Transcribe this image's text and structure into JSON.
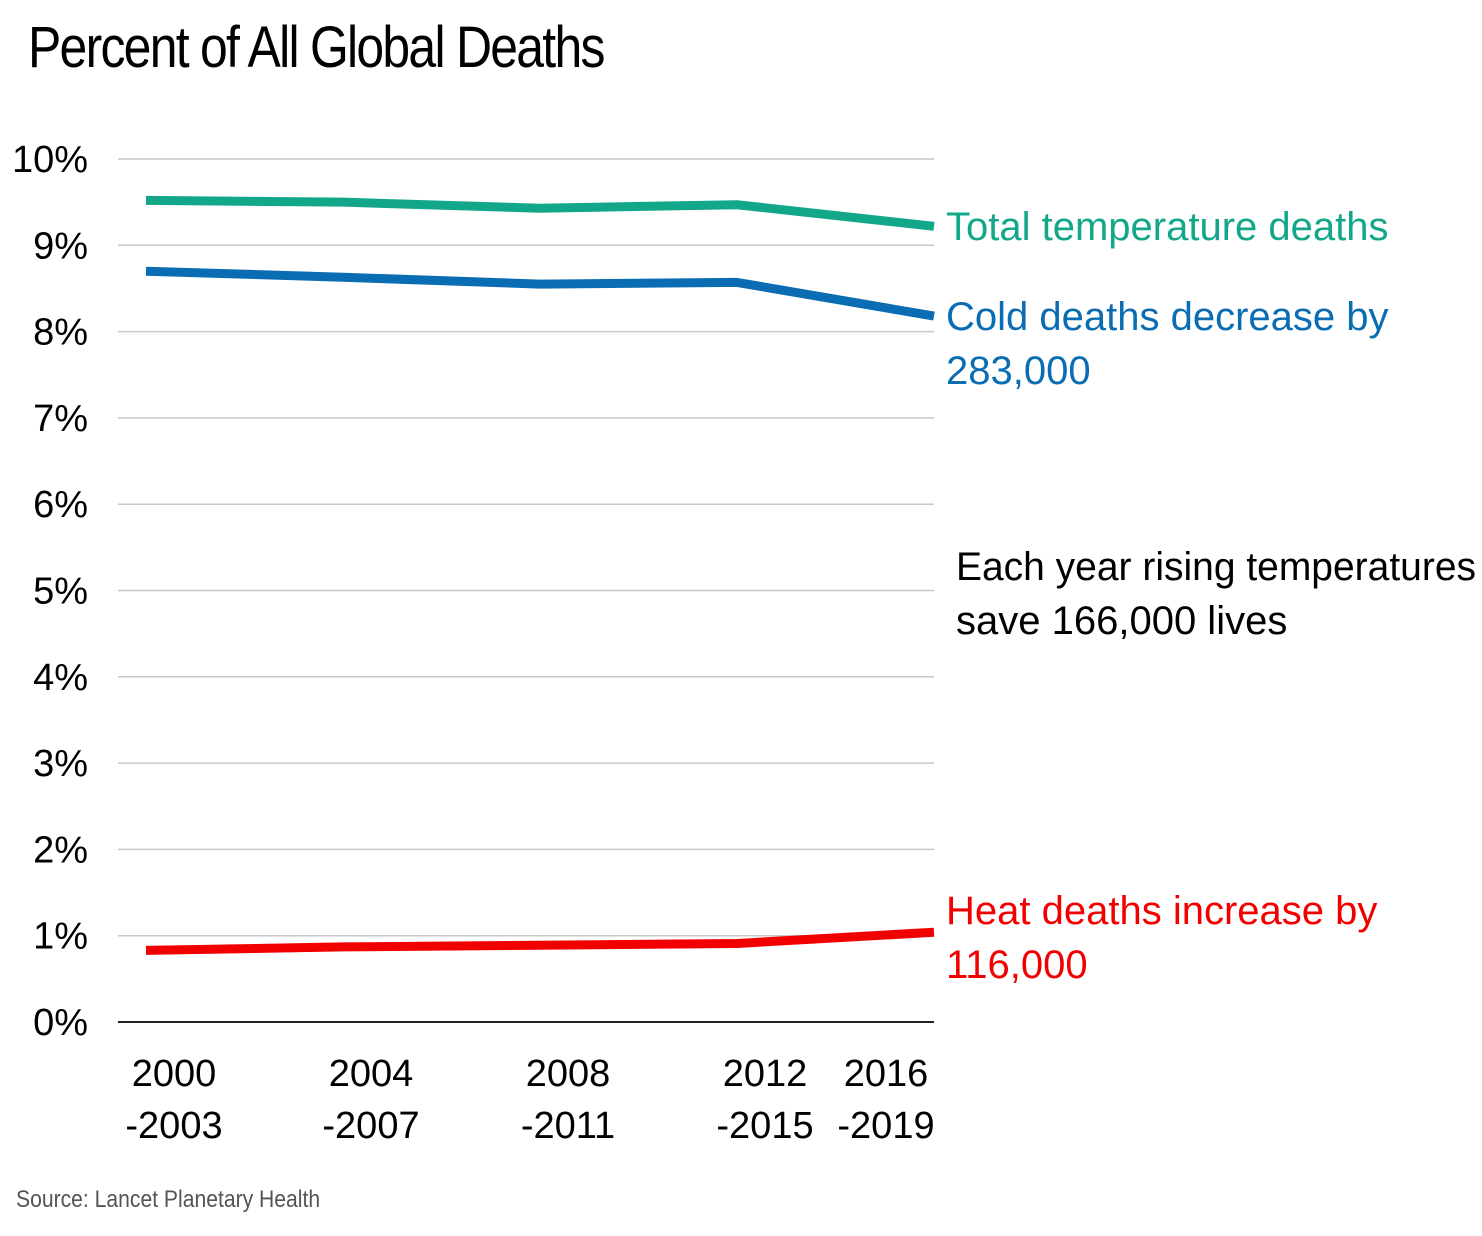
{
  "chart_data": {
    "type": "line",
    "title": "Percent of All Global Deaths",
    "categories": [
      [
        "2000",
        "-2003"
      ],
      [
        "2004",
        "-2007"
      ],
      [
        "2008",
        "-2011"
      ],
      [
        "2012",
        "-2015"
      ],
      [
        "2016",
        "-2019"
      ]
    ],
    "y_tick_labels": [
      "0%",
      "1%",
      "2%",
      "3%",
      "4%",
      "5%",
      "6%",
      "7%",
      "8%",
      "9%",
      "10%"
    ],
    "ylim": [
      0,
      10
    ],
    "grid": true,
    "series": [
      {
        "name": "Total temperature deaths",
        "color": "#12a789",
        "values": [
          9.52,
          9.5,
          9.43,
          9.47,
          9.22
        ]
      },
      {
        "name": "Cold deaths decrease by 283,000",
        "color": "#0a6db3",
        "values": [
          8.7,
          8.63,
          8.55,
          8.57,
          8.18
        ]
      },
      {
        "name": "Heat deaths increase by 116,000",
        "color": "#f20000",
        "values": [
          0.83,
          0.87,
          0.89,
          0.91,
          1.04
        ]
      }
    ],
    "annotations": [
      {
        "lines": [
          "Total temperature deaths"
        ],
        "color": "#12a789"
      },
      {
        "lines": [
          "Cold deaths decrease by",
          "283,000"
        ],
        "color": "#0a6db3"
      },
      {
        "lines": [
          "Each year rising temperatures",
          "save 166,000 lives"
        ],
        "color": "#000000"
      },
      {
        "lines": [
          "Heat deaths increase by",
          "116,000"
        ],
        "color": "#f20000"
      }
    ]
  },
  "source": "Source: Lancet Planetary Health"
}
